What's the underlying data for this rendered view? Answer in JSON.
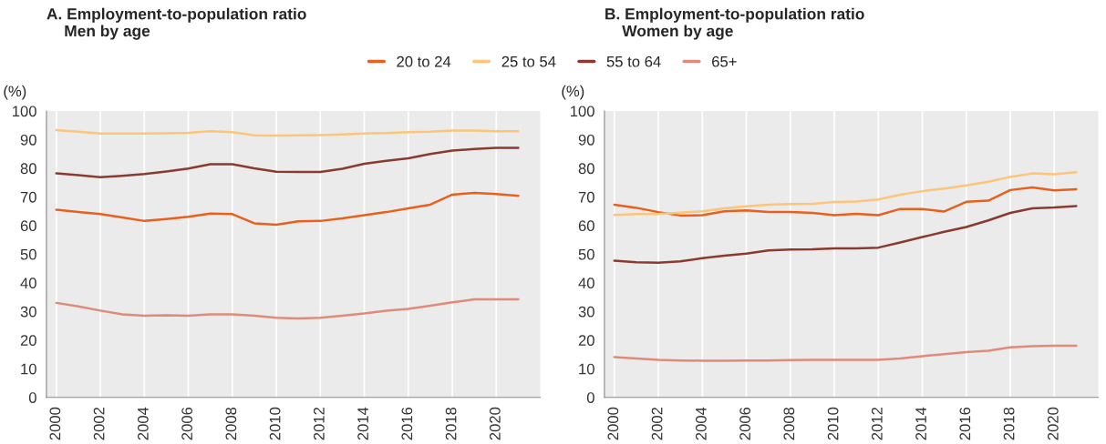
{
  "chart_data": [
    {
      "type": "line",
      "title": "A. Employment-to-population ratio\n    Men by age",
      "ylabel": "(%)",
      "x": [
        2000,
        2001,
        2002,
        2003,
        2004,
        2005,
        2006,
        2007,
        2008,
        2009,
        2010,
        2011,
        2012,
        2013,
        2014,
        2015,
        2016,
        2017,
        2018,
        2019,
        2020,
        2021
      ],
      "series": [
        {
          "name": "20 to 24",
          "color": "#e8601c",
          "values": [
            65.5,
            64.7,
            64,
            62.8,
            61.6,
            62.3,
            63.1,
            64.2,
            64,
            60.8,
            60.3,
            61.5,
            61.6,
            62.5,
            63.6,
            64.7,
            66,
            67.3,
            70.8,
            71.4,
            71,
            70.4
          ]
        },
        {
          "name": "25 to 54",
          "color": "#fcc57a",
          "values": [
            93.3,
            92.8,
            92.1,
            92.1,
            92.1,
            92.2,
            92.4,
            92.9,
            92.6,
            91.5,
            91.4,
            91.5,
            91.6,
            91.8,
            92.1,
            92.3,
            92.6,
            92.8,
            93.2,
            93.2,
            92.9,
            92.9
          ]
        },
        {
          "name": "55 to 64",
          "color": "#8b3a2f",
          "values": [
            78.2,
            77.6,
            76.9,
            77.4,
            78,
            78.9,
            79.9,
            81.4,
            81.4,
            80,
            78.8,
            78.7,
            78.7,
            79.8,
            81.6,
            82.6,
            83.5,
            85,
            86.2,
            86.7,
            87.1,
            87.1
          ]
        },
        {
          "name": "65+",
          "color": "#e08a7a",
          "values": [
            33,
            31.8,
            30.3,
            29,
            28.5,
            28.7,
            28.5,
            29,
            29,
            28.5,
            27.8,
            27.6,
            27.8,
            28.5,
            29.3,
            30.3,
            30.9,
            32,
            33.2,
            34.2,
            34.2,
            34.2
          ]
        }
      ],
      "xlim": [
        1999.55,
        2022
      ],
      "xticks": [
        2000,
        2002,
        2004,
        2006,
        2008,
        2010,
        2012,
        2014,
        2016,
        2018,
        2020
      ],
      "ylim": [
        0,
        100
      ],
      "yticks": [
        0,
        10,
        20,
        30,
        40,
        50,
        60,
        70,
        80,
        90,
        100
      ],
      "grid": "x",
      "legend": "top",
      "line_style": "solid",
      "marker": "none"
    },
    {
      "type": "line",
      "title": "B. Employment-to-population ratio\n    Women by age",
      "ylabel": "(%)",
      "x": [
        2000,
        2001,
        2002,
        2003,
        2004,
        2005,
        2006,
        2007,
        2008,
        2009,
        2010,
        2011,
        2012,
        2013,
        2014,
        2015,
        2016,
        2017,
        2018,
        2019,
        2020,
        2021
      ],
      "series": [
        {
          "name": "20 to 24",
          "color": "#e8601c",
          "values": [
            67.3,
            66.2,
            64.7,
            63.5,
            63.6,
            65,
            65.3,
            64.7,
            64.7,
            64.4,
            63.6,
            64.1,
            63.6,
            65.8,
            65.8,
            64.9,
            68.3,
            68.7,
            72.4,
            73.3,
            72.3,
            72.7
          ]
        },
        {
          "name": "25 to 54",
          "color": "#fcc57a",
          "values": [
            63.7,
            64,
            64,
            64.5,
            65,
            66,
            66.7,
            67.3,
            67.5,
            67.6,
            68.2,
            68.4,
            69.1,
            70.8,
            72,
            72.9,
            74,
            75.3,
            77,
            78.2,
            77.9,
            78.6
          ]
        },
        {
          "name": "55 to 64",
          "color": "#8b3a2f",
          "values": [
            47.7,
            47.2,
            47,
            47.5,
            48.6,
            49.5,
            50.2,
            51.3,
            51.6,
            51.7,
            52,
            52,
            52.3,
            54.1,
            56,
            57.8,
            59.5,
            61.8,
            64.4,
            66,
            66.3,
            66.8
          ]
        },
        {
          "name": "65+",
          "color": "#e08a7a",
          "values": [
            14.1,
            13.6,
            13.1,
            12.9,
            12.8,
            12.8,
            12.9,
            12.9,
            13,
            13.1,
            13.1,
            13.1,
            13.1,
            13.6,
            14.4,
            15.1,
            15.8,
            16.3,
            17.5,
            17.9,
            18,
            18
          ]
        }
      ],
      "xlim": [
        1999.55,
        2022
      ],
      "xticks": [
        2000,
        2002,
        2004,
        2006,
        2008,
        2010,
        2012,
        2014,
        2016,
        2018,
        2020
      ],
      "ylim": [
        0,
        100
      ],
      "yticks": [
        0,
        10,
        20,
        30,
        40,
        50,
        60,
        70,
        80,
        90,
        100
      ],
      "grid": "x",
      "line_style": "solid",
      "marker": "none"
    }
  ]
}
